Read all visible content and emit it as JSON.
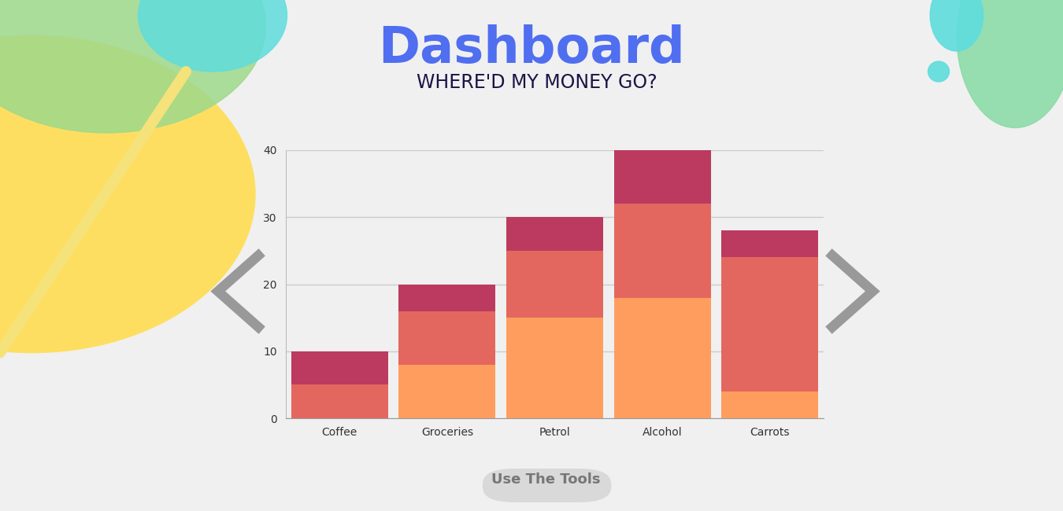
{
  "chart_data": {
    "type": "bar",
    "title": "Dashboard",
    "subtitle": "WHERE'D MY MONEY GO?",
    "categories": [
      "Coffee",
      "Groceries",
      "Petrol",
      "Alcohol",
      "Carrots"
    ],
    "series": [
      {
        "color": "#FF9D5F",
        "values": [
          0,
          8,
          15,
          18,
          4
        ]
      },
      {
        "color": "#E3675F",
        "values": [
          5,
          8,
          10,
          14,
          20
        ]
      },
      {
        "color": "#BC3A5F",
        "values": [
          5,
          4,
          5,
          8,
          4
        ]
      }
    ],
    "stacked": true,
    "ylim": [
      0,
      40
    ],
    "yticks": [
      0,
      10,
      20,
      30,
      40
    ],
    "grid": true,
    "annotations": [
      "Use The Tools"
    ]
  }
}
